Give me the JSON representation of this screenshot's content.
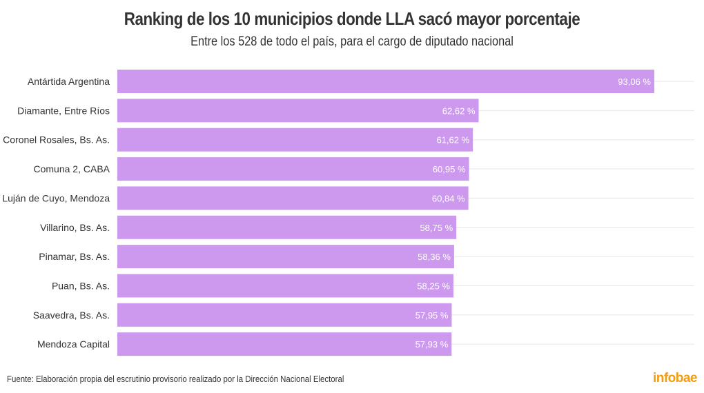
{
  "chart_data": {
    "type": "bar",
    "orientation": "horizontal",
    "title": "Ranking de los 10 municipios donde LLA sacó mayor porcentaje",
    "subtitle": "Entre los 528 de todo el país, para el cargo de diputado nacional",
    "categories": [
      "Antártida Argentina",
      "Diamante, Entre Ríos",
      "Coronel Rosales, Bs. As.",
      "Comuna 2, CABA",
      "Luján de Cuyo, Mendoza",
      "Villarino, Bs. As.",
      "Pinamar, Bs. As.",
      "Puan, Bs. As.",
      "Saavedra, Bs. As.",
      "Mendoza Capital"
    ],
    "values": [
      93.06,
      62.62,
      61.62,
      60.95,
      60.84,
      58.75,
      58.36,
      58.25,
      57.95,
      57.93
    ],
    "value_labels": [
      "93,06 %",
      "62,62 %",
      "61,62 %",
      "60,95 %",
      "60,84 %",
      "58,75 %",
      "58,36 %",
      "58,25 %",
      "57,95 %",
      "57,93 %"
    ],
    "xlim": [
      0,
      100
    ],
    "grid": true,
    "bar_color": "#cc99ee"
  },
  "footer": {
    "source": "Fuente: Elaboración propia del escrutinio provisorio realizado por la Dirección Nacional Electoral",
    "logo": "infobae",
    "logo_color": "#f39c12"
  }
}
